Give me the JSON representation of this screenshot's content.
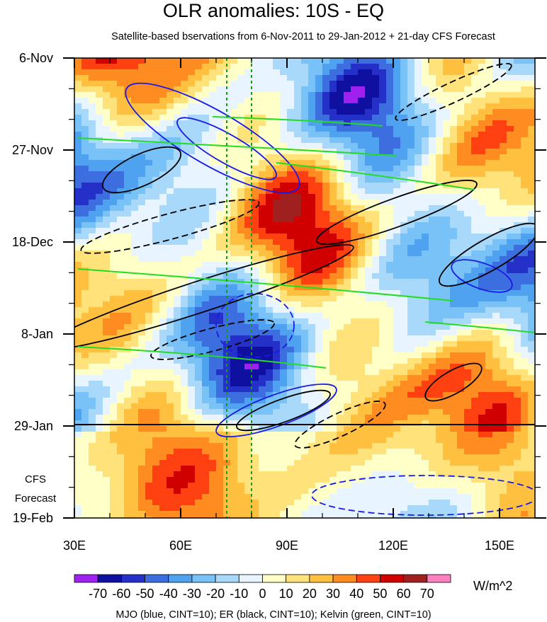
{
  "chart_data": {
    "type": "heatmap",
    "title": "OLR anomalies: 10S - EQ",
    "subtitle": "Satellite-based bservations from 6-Nov-2011 to 29-Jan-2012 + 21-day CFS Forecast",
    "x_axis": {
      "range": [
        30,
        160
      ],
      "ticks": [
        30,
        60,
        90,
        120,
        150
      ],
      "tick_labels": [
        "30E",
        "60E",
        "90E",
        "120E",
        "150E"
      ]
    },
    "y_axis": {
      "range": [
        "6-Nov-2011",
        "19-Feb-2012"
      ],
      "tick_labels": [
        "6-Nov",
        "27-Nov",
        "18-Dec",
        "8-Jan",
        "29-Jan",
        "19-Feb"
      ],
      "tick_dates": [
        "2011-11-06",
        "2011-11-27",
        "2011-12-18",
        "2012-01-08",
        "2012-01-29",
        "2012-02-19"
      ],
      "reversed": true
    },
    "forecast_label": [
      "CFS",
      "Forecast"
    ],
    "forecast_start": "2012-01-29",
    "reference_longitudes": [
      73,
      80
    ],
    "colorbar": {
      "unit": "W/m^2",
      "levels": [
        -70,
        -60,
        -50,
        -40,
        -30,
        -20,
        -10,
        0,
        10,
        20,
        30,
        40,
        50,
        60,
        70
      ],
      "level_labels": [
        "-70",
        "-60",
        "-50",
        "-40",
        "-30",
        "-20",
        "-10",
        "0",
        "10",
        "20",
        "30",
        "40",
        "50",
        "60",
        "70"
      ],
      "colors": [
        "#a020f0",
        "#1010a0",
        "#2530c8",
        "#3c6ee0",
        "#4ea2f0",
        "#78c2f8",
        "#a8d8fa",
        "#e8f4ff",
        "#ffffc8",
        "#ffe27a",
        "#ffc040",
        "#ff8c20",
        "#ff4010",
        "#d00000",
        "#a02020",
        "#ff80c0"
      ]
    },
    "footnote": "MJO (blue, CINT=10); ER (black, CINT=10); Kelvin (green, CINT=10)",
    "contour_colors": {
      "mjo": "#1a1ae6",
      "er": "#000000",
      "kelvin": "#22dd22"
    }
  }
}
